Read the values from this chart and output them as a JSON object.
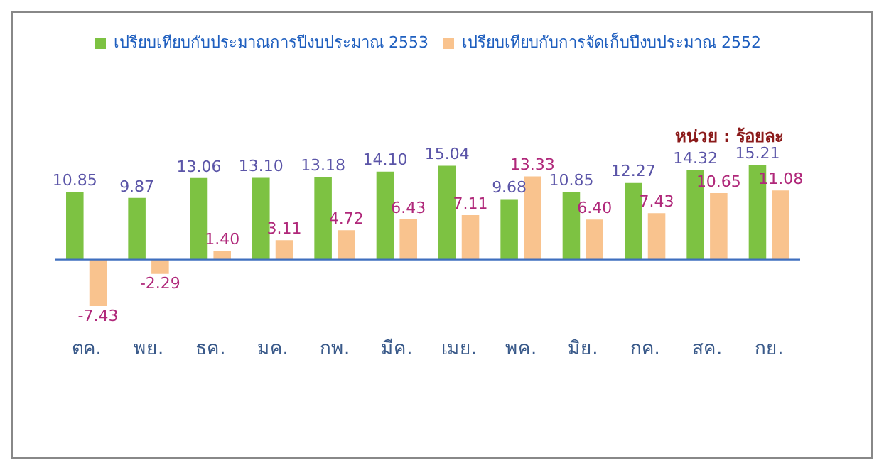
{
  "chart_data": {
    "type": "bar",
    "categories": [
      "ตค.",
      "พย.",
      "ธค.",
      "มค.",
      "กพ.",
      "มีค.",
      "เมย.",
      "พค.",
      "มิย.",
      "กค.",
      "สค.",
      "กย."
    ],
    "series": [
      {
        "name": "เปรียบเทียบกับประมาณการปีงบประมาณ 2553",
        "color": "#7dc242",
        "values": [
          10.85,
          9.87,
          13.06,
          13.1,
          13.18,
          14.1,
          15.04,
          9.68,
          10.85,
          12.27,
          14.32,
          15.21
        ],
        "value_labels": [
          "10.85",
          "9.87",
          "13.06",
          "13.10",
          "13.18",
          "14.10",
          "15.04",
          "9.68",
          "10.85",
          "12.27",
          "14.32",
          "15.21"
        ]
      },
      {
        "name": "เปรียบเทียบกับการจัดเก็บปีงบประมาณ 2552",
        "color": "#f9c38e",
        "values": [
          -7.43,
          -2.29,
          1.4,
          3.11,
          4.72,
          6.43,
          7.11,
          13.33,
          6.4,
          7.43,
          10.65,
          11.08
        ],
        "value_labels": [
          "-7.43",
          "-2.29",
          "1.40",
          "3.11",
          "4.72",
          "6.43",
          "7.11",
          "13.33",
          "6.40",
          "7.43",
          "10.65",
          "11.08"
        ]
      }
    ],
    "ref_lines": [
      {
        "axis": "y",
        "value": 0,
        "color": "#3f6fbf"
      }
    ],
    "annotations": [
      "หน่วย : ร้อยละ"
    ],
    "legend": "top",
    "grid": false
  }
}
